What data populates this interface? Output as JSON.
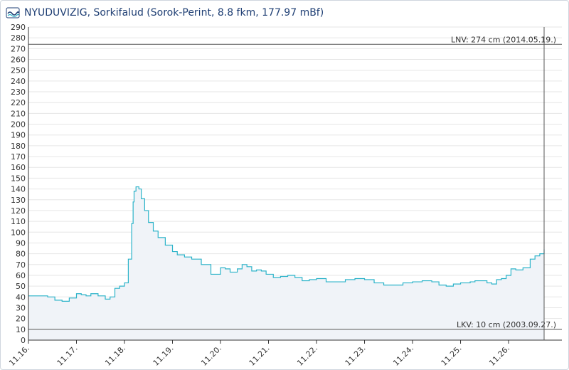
{
  "header": {
    "title": "NYUDUVIZIG, Sorkifalud (Sorok-Perint, 8.8 fkm, 177.97 mBf)",
    "logo_icon": "water-authority-logo-icon"
  },
  "colors": {
    "line": "#2bb3c9",
    "fill": "#f0f3f8",
    "grid": "#e6e6e6",
    "axis": "#333333",
    "title": "#1f3f74"
  },
  "chart_data": {
    "type": "area",
    "title": "NYUDUVIZIG, Sorkifalud (Sorok-Perint, 8.8 fkm, 177.97 mBf)",
    "xlabel": "",
    "ylabel": "",
    "ylim": [
      0,
      290
    ],
    "ytick_step": 10,
    "grid": true,
    "xlim": [
      0,
      10.74
    ],
    "x_ticks": [
      {
        "x": 0,
        "label": "11.16."
      },
      {
        "x": 1,
        "label": "11.17."
      },
      {
        "x": 2,
        "label": "11.18."
      },
      {
        "x": 3,
        "label": "11.19."
      },
      {
        "x": 4,
        "label": "11.20."
      },
      {
        "x": 5,
        "label": "11.21."
      },
      {
        "x": 6,
        "label": "11.22."
      },
      {
        "x": 7,
        "label": "11.23."
      },
      {
        "x": 8,
        "label": "11.24."
      },
      {
        "x": 9,
        "label": "11.25."
      },
      {
        "x": 10,
        "label": "11.26."
      }
    ],
    "reference_lines": [
      {
        "name": "LNV",
        "value": 274,
        "label": "LNV: 274 cm (2014.05.19.)"
      },
      {
        "name": "LKV",
        "value": 10,
        "label": "LKV: 10 cm (2003.09.27.)"
      }
    ],
    "series": [
      {
        "x": [
          0,
          0.2,
          0.4,
          0.55,
          0.7,
          0.85,
          1.0,
          1.1,
          1.2,
          1.3,
          1.45,
          1.6,
          1.7,
          1.8,
          1.9,
          2.0,
          2.08,
          2.15,
          2.18,
          2.2,
          2.24,
          2.3,
          2.35,
          2.42,
          2.5,
          2.6,
          2.7,
          2.85,
          3.0,
          3.1,
          3.25,
          3.4,
          3.6,
          3.8,
          4.0,
          4.1,
          4.2,
          4.28,
          4.35,
          4.45,
          4.55,
          4.65,
          4.75,
          4.85,
          4.95,
          5.1,
          5.25,
          5.4,
          5.55,
          5.7,
          5.85,
          6.0,
          6.2,
          6.4,
          6.6,
          6.8,
          7.0,
          7.2,
          7.4,
          7.6,
          7.8,
          8.0,
          8.2,
          8.4,
          8.55,
          8.7,
          8.85,
          9.0,
          9.2,
          9.3,
          9.4,
          9.55,
          9.65,
          9.75,
          9.85,
          9.95,
          10.05,
          10.15,
          10.3,
          10.45,
          10.55,
          10.65,
          10.74
        ],
        "y": [
          41,
          41,
          40,
          37,
          36,
          39,
          43,
          42,
          41,
          43,
          41,
          38,
          40,
          48,
          50,
          53,
          75,
          108,
          128,
          138,
          142,
          140,
          131,
          120,
          109,
          101,
          95,
          88,
          82,
          79,
          77,
          75,
          70,
          61,
          67,
          66,
          63,
          63,
          66,
          70,
          68,
          64,
          65,
          64,
          61,
          58,
          59,
          60,
          58,
          55,
          56,
          57,
          54,
          54,
          56,
          57,
          56,
          53,
          51,
          51,
          53,
          54,
          55,
          54,
          51,
          50,
          52,
          53,
          54,
          55,
          55,
          53,
          52,
          56,
          57,
          60,
          66,
          65,
          67,
          75,
          78,
          80,
          84
        ]
      }
    ]
  }
}
